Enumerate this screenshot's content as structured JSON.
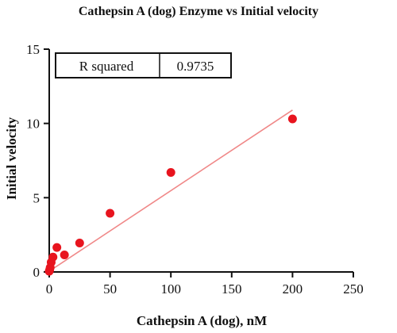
{
  "chart_data": {
    "type": "scatter",
    "title": "Cathepsin A (dog) Enzyme vs Initial velocity",
    "xlabel": "Cathepsin A (dog), nM",
    "ylabel": "Initial velocity",
    "xlim": [
      0,
      250
    ],
    "ylim": [
      0,
      15
    ],
    "x_ticks": [
      0,
      50,
      100,
      150,
      200,
      250
    ],
    "y_ticks": [
      0,
      5,
      10,
      15
    ],
    "grid": false,
    "legend": "none",
    "series": [
      {
        "x": [
          0,
          0.4,
          0.8,
          1.6,
          3.1,
          6.3,
          12.5,
          25,
          50,
          100,
          200
        ],
        "y": [
          0.05,
          0.15,
          0.3,
          0.65,
          1.0,
          1.65,
          1.15,
          1.95,
          3.95,
          6.7,
          10.3
        ],
        "color": "#e8141e"
      }
    ],
    "fit_line": {
      "type": "linear",
      "x": [
        0,
        200
      ],
      "y": [
        0.05,
        10.9
      ],
      "color": "#f08888"
    },
    "stats_table": {
      "label": "R squared",
      "value": "0.9735"
    }
  }
}
